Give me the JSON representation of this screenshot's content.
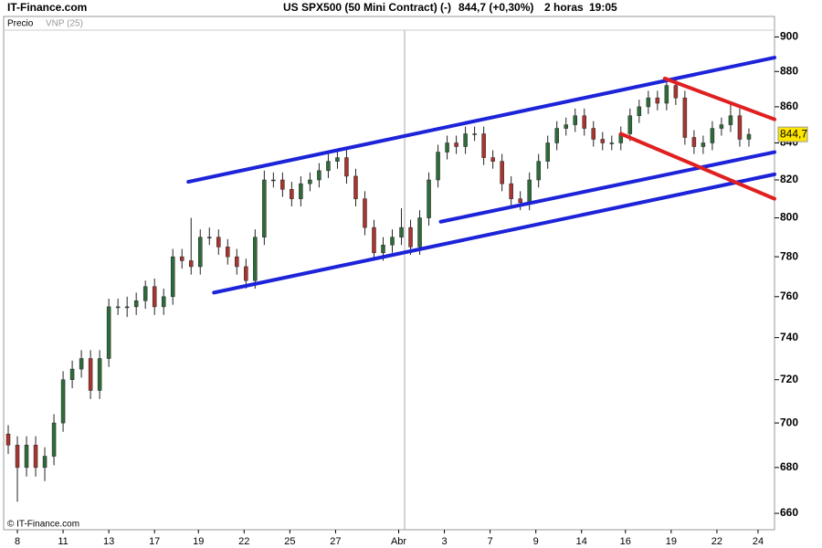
{
  "header": {
    "brand": "IT-Finance.com"
  },
  "chart_data": {
    "type": "candlestick",
    "title": "US SPX500 (50 Mini Contract) (-)",
    "quote": "844,7 (+0,30%)",
    "period": "2 horas",
    "time": "19:05",
    "legend": [
      "Precio",
      "VNP (25)"
    ],
    "last_label": "844,7",
    "copyright": "© IT-Finance.com",
    "log_scale": true,
    "up_color": "#2f6b3a",
    "down_color": "#a8352f",
    "xlim": [
      -0.5,
      83.8
    ],
    "ylim": [
      653,
      904
    ],
    "yticks": [
      660,
      680,
      700,
      720,
      740,
      760,
      780,
      800,
      820,
      840,
      860,
      880,
      900
    ],
    "xticks": [
      {
        "value": 1,
        "label": "8"
      },
      {
        "value": 6,
        "label": "11"
      },
      {
        "value": 11,
        "label": "13"
      },
      {
        "value": 16,
        "label": "17"
      },
      {
        "value": 20.8,
        "label": "19"
      },
      {
        "value": 25.8,
        "label": "22"
      },
      {
        "value": 30.8,
        "label": "25"
      },
      {
        "value": 35.8,
        "label": "27"
      },
      {
        "value": 42.7,
        "label": "Abr"
      },
      {
        "value": 47.7,
        "label": "3"
      },
      {
        "value": 52.7,
        "label": "7"
      },
      {
        "value": 57.7,
        "label": "9"
      },
      {
        "value": 62.7,
        "label": "14"
      },
      {
        "value": 67.5,
        "label": "16"
      },
      {
        "value": 72.5,
        "label": "19"
      },
      {
        "value": 77.5,
        "label": "22"
      },
      {
        "value": 82,
        "label": "24"
      }
    ],
    "open": [
      695,
      690,
      680,
      690,
      680,
      685,
      700,
      720,
      725,
      730,
      715,
      730,
      755,
      755,
      755,
      758,
      765,
      755,
      760,
      780,
      778,
      775,
      790,
      790,
      785,
      780,
      775,
      768,
      790,
      820,
      820,
      815,
      810,
      818,
      820,
      825,
      830,
      832,
      822,
      810,
      795,
      782,
      786,
      790,
      795,
      785,
      800,
      820,
      835,
      840,
      838,
      845,
      845,
      832,
      830,
      818,
      810,
      808,
      820,
      830,
      840,
      848,
      850,
      855,
      848,
      842,
      840,
      840,
      845,
      855,
      860,
      865,
      862,
      872,
      865,
      843,
      838,
      840,
      848,
      850,
      855,
      842
    ],
    "high": [
      699,
      694,
      694,
      694,
      689,
      704,
      724,
      729,
      734,
      734,
      734,
      759,
      759,
      760,
      762,
      768,
      769,
      764,
      784,
      784,
      800,
      794,
      795,
      794,
      789,
      784,
      779,
      794,
      825,
      824,
      824,
      819,
      822,
      824,
      829,
      834,
      836,
      836,
      826,
      814,
      799,
      790,
      794,
      805,
      799,
      804,
      824,
      839,
      844,
      844,
      849,
      849,
      849,
      836,
      834,
      822,
      814,
      824,
      834,
      844,
      852,
      854,
      859,
      859,
      852,
      846,
      844,
      849,
      859,
      864,
      869,
      869,
      876,
      876,
      869,
      847,
      844,
      852,
      854,
      862,
      859,
      848
    ],
    "low": [
      686,
      665,
      676,
      676,
      674,
      681,
      696,
      716,
      721,
      711,
      711,
      726,
      751,
      750,
      751,
      754,
      751,
      751,
      756,
      774,
      771,
      771,
      786,
      781,
      776,
      771,
      764,
      764,
      786,
      816,
      811,
      806,
      806,
      814,
      816,
      821,
      826,
      818,
      806,
      791,
      778,
      778,
      782,
      786,
      781,
      781,
      796,
      816,
      831,
      834,
      834,
      841,
      828,
      826,
      814,
      806,
      804,
      804,
      816,
      826,
      836,
      844,
      846,
      844,
      838,
      836,
      836,
      836,
      841,
      851,
      856,
      858,
      858,
      861,
      839,
      834,
      834,
      836,
      844,
      846,
      838,
      838
    ],
    "close": [
      690,
      680,
      690,
      680,
      685,
      700,
      720,
      725,
      730,
      715,
      730,
      755,
      755,
      755,
      758,
      765,
      755,
      760,
      780,
      778,
      775,
      790,
      790,
      785,
      780,
      775,
      768,
      790,
      820,
      820,
      815,
      810,
      818,
      820,
      825,
      830,
      832,
      822,
      810,
      795,
      782,
      786,
      790,
      795,
      785,
      800,
      820,
      835,
      840,
      838,
      845,
      845,
      832,
      830,
      818,
      810,
      808,
      820,
      830,
      840,
      848,
      850,
      855,
      848,
      842,
      840,
      840,
      845,
      855,
      860,
      865,
      862,
      872,
      865,
      843,
      838,
      840,
      848,
      850,
      855,
      842,
      844.7
    ],
    "trendlines": [
      {
        "color": "#1c23d9",
        "x": [
          19.7,
          83.8
        ],
        "y": [
          819,
          888
        ]
      },
      {
        "color": "#1c23d9",
        "x": [
          22.5,
          83.8
        ],
        "y": [
          762,
          823
        ]
      },
      {
        "color": "#1c23d9",
        "x": [
          47.3,
          83.8
        ],
        "y": [
          798,
          835
        ]
      },
      {
        "color": "#e02020",
        "x": [
          67,
          83.8
        ],
        "y": [
          845,
          810
        ]
      },
      {
        "color": "#e02020",
        "x": [
          71.8,
          83.8
        ],
        "y": [
          876,
          853
        ]
      }
    ]
  }
}
